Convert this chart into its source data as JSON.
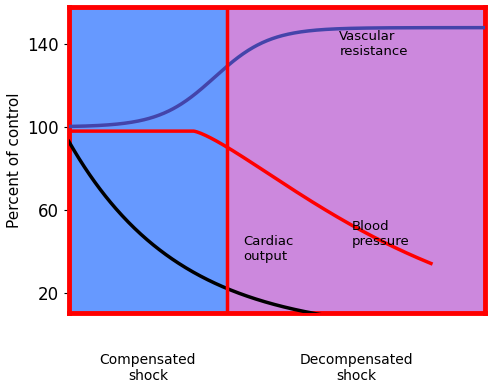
{
  "ylabel": "Percent of control",
  "ylim": [
    10,
    158
  ],
  "yticks": [
    20,
    60,
    100,
    140
  ],
  "xlim": [
    0,
    10
  ],
  "divider_x": 3.8,
  "bg_left_color": "#6699FF",
  "bg_right_color": "#CC88DD",
  "outer_border_color": "#FF0000",
  "divider_color": "#FF0000",
  "label_compensated": "Compensated\nshock",
  "label_decompensated": "Decompensated\nshock",
  "label_vascular": "Vascular\nresistance",
  "label_cardiac": "Cardiac\noutput",
  "label_blood": "Blood\npressure",
  "vascular_color": "#4444AA",
  "cardiac_color": "#000000",
  "blood_color": "#FF0000",
  "line_width": 2.5
}
